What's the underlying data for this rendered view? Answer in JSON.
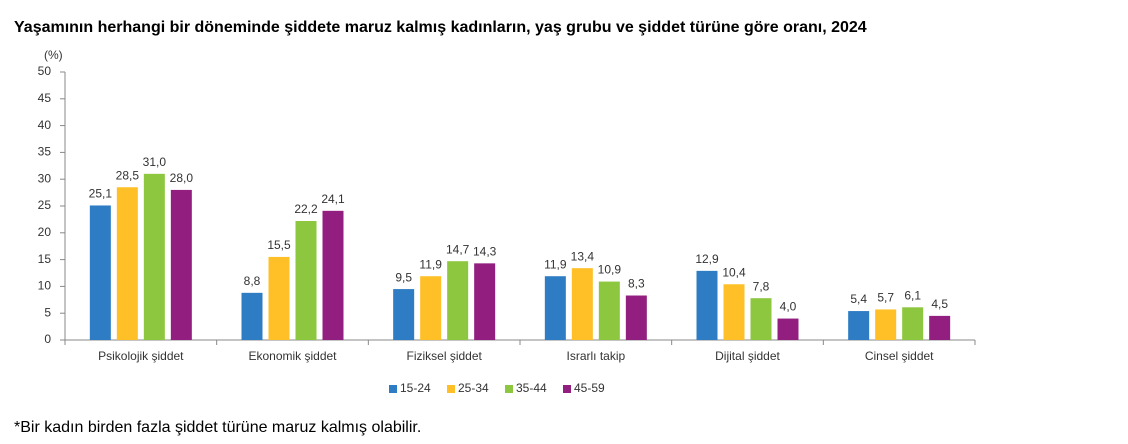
{
  "chart_data": {
    "type": "bar",
    "title": "Yaşamının herhangi bir döneminde şiddete maruz kalmış kadınların, yaş grubu ve şiddet türüne göre oranı, 2024",
    "y_label": "(%)",
    "categories": [
      "Psikolojik şiddet",
      "Ekonomik şiddet",
      "Fiziksel şiddet",
      "Israrlı takip",
      "Dijital şiddet",
      "Cinsel şiddet"
    ],
    "series": [
      {
        "name": "15-24",
        "color": "#2e7cc4",
        "values": [
          25.1,
          8.8,
          9.5,
          11.9,
          12.9,
          5.4
        ],
        "value_labels": [
          "25,1",
          "8,8",
          "9,5",
          "11,9",
          "12,9",
          "5,4"
        ]
      },
      {
        "name": "25-34",
        "color": "#ffbf26",
        "values": [
          28.5,
          15.5,
          11.9,
          13.4,
          10.4,
          5.7
        ],
        "value_labels": [
          "28,5",
          "15,5",
          "11,9",
          "13,4",
          "10,4",
          "5,7"
        ]
      },
      {
        "name": "35-44",
        "color": "#8dc63f",
        "values": [
          31.0,
          22.2,
          14.7,
          10.9,
          7.8,
          6.1
        ],
        "value_labels": [
          "31,0",
          "22,2",
          "14,7",
          "10,9",
          "7,8",
          "6,1"
        ]
      },
      {
        "name": "45-59",
        "color": "#921f7f",
        "values": [
          28.0,
          24.1,
          14.3,
          8.3,
          4.0,
          4.5
        ],
        "value_labels": [
          "28,0",
          "24,1",
          "14,3",
          "8,3",
          "4,0",
          "4,5"
        ]
      }
    ],
    "ylim": [
      0,
      50
    ],
    "yticks": [
      0,
      5,
      10,
      15,
      20,
      25,
      30,
      35,
      40,
      45,
      50
    ],
    "grid": false,
    "note": "*Bir kadın birden fazla şiddet türüne maruz kalmış olabilir."
  }
}
